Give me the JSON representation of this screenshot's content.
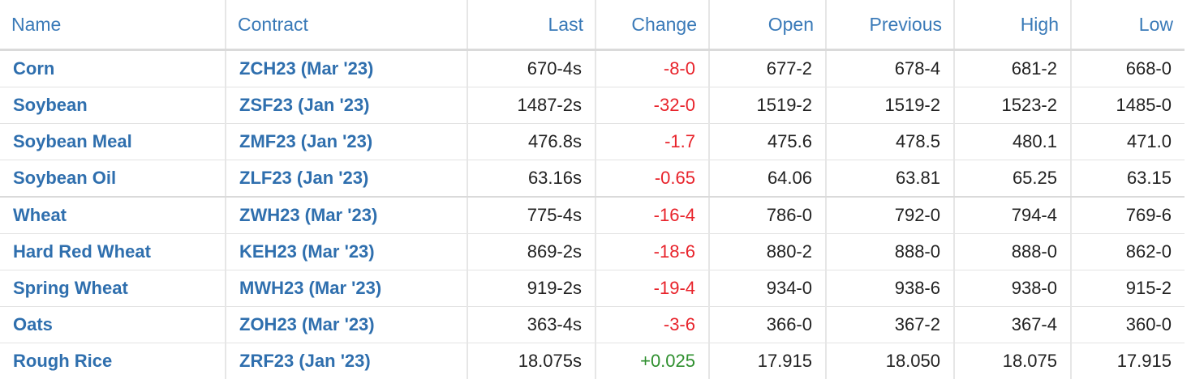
{
  "table": {
    "headers": [
      "Name",
      "Contract",
      "Last",
      "Change",
      "Open",
      "Previous",
      "High",
      "Low"
    ],
    "rows": [
      {
        "name": "Corn",
        "contract": "ZCH23 (Mar '23)",
        "last": "670-4s",
        "change": "-8-0",
        "direction": "down",
        "open": "677-2",
        "previous": "678-4",
        "high": "681-2",
        "low": "668-0"
      },
      {
        "name": "Soybean",
        "contract": "ZSF23 (Jan '23)",
        "last": "1487-2s",
        "change": "-32-0",
        "direction": "down",
        "open": "1519-2",
        "previous": "1519-2",
        "high": "1523-2",
        "low": "1485-0"
      },
      {
        "name": "Soybean Meal",
        "contract": "ZMF23 (Jan '23)",
        "last": "476.8s",
        "change": "-1.7",
        "direction": "down",
        "open": "475.6",
        "previous": "478.5",
        "high": "480.1",
        "low": "471.0"
      },
      {
        "name": "Soybean Oil",
        "contract": "ZLF23 (Jan '23)",
        "last": "63.16s",
        "change": "-0.65",
        "direction": "down",
        "open": "64.06",
        "previous": "63.81",
        "high": "65.25",
        "low": "63.15"
      },
      {
        "name": "Wheat",
        "contract": "ZWH23 (Mar '23)",
        "last": "775-4s",
        "change": "-16-4",
        "direction": "down",
        "open": "786-0",
        "previous": "792-0",
        "high": "794-4",
        "low": "769-6"
      },
      {
        "name": "Hard Red Wheat",
        "contract": "KEH23 (Mar '23)",
        "last": "869-2s",
        "change": "-18-6",
        "direction": "down",
        "open": "880-2",
        "previous": "888-0",
        "high": "888-0",
        "low": "862-0"
      },
      {
        "name": "Spring Wheat",
        "contract": "MWH23 (Mar '23)",
        "last": "919-2s",
        "change": "-19-4",
        "direction": "down",
        "open": "934-0",
        "previous": "938-6",
        "high": "938-0",
        "low": "915-2"
      },
      {
        "name": "Oats",
        "contract": "ZOH23 (Mar '23)",
        "last": "363-4s",
        "change": "-3-6",
        "direction": "down",
        "open": "366-0",
        "previous": "367-2",
        "high": "367-4",
        "low": "360-0"
      },
      {
        "name": "Rough Rice",
        "contract": "ZRF23 (Jan '23)",
        "last": "18.075s",
        "change": "+0.025",
        "direction": "up",
        "open": "17.915",
        "previous": "18.050",
        "high": "18.075",
        "low": "17.915"
      }
    ]
  },
  "colors": {
    "link": "#2f6fae",
    "header": "#3a7ab8",
    "negative": "#e8232b",
    "positive": "#2e8f2e",
    "text": "#222222"
  }
}
